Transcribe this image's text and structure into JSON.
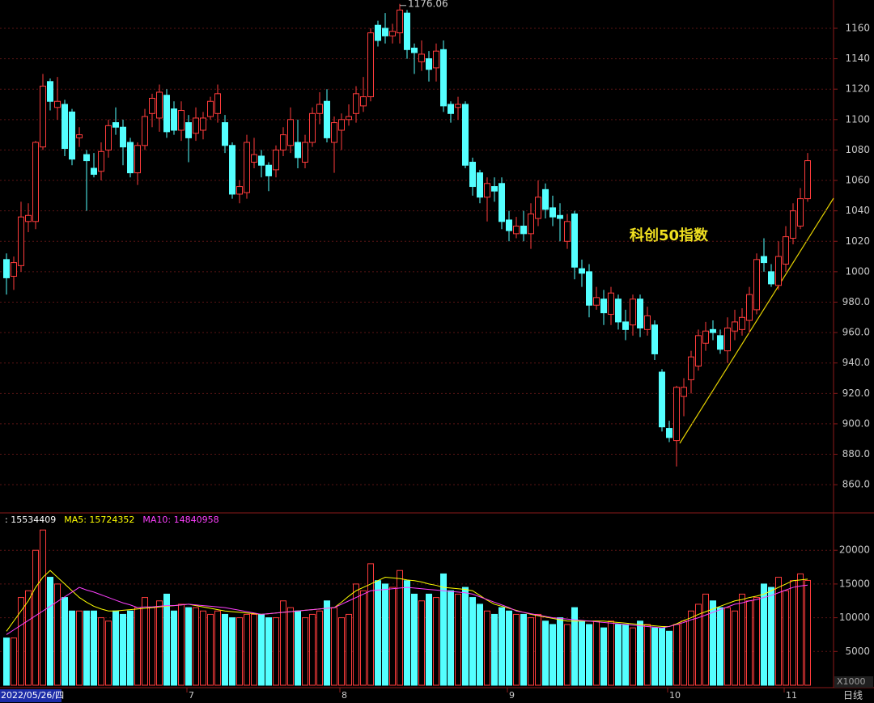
{
  "chart_data": [
    {
      "type": "candlestick",
      "period": "日线",
      "annotation": "科创50指数",
      "up_color": "#ff3c3c",
      "down_color": "#54ffff",
      "categories": [
        "2022/05/26/四",
        null,
        null,
        null,
        null,
        null,
        null,
        null,
        null,
        null,
        null,
        null,
        null,
        null,
        null,
        null,
        null,
        null,
        null,
        null,
        null,
        null,
        null,
        null,
        null,
        "7",
        null,
        null,
        null,
        null,
        null,
        null,
        null,
        null,
        null,
        null,
        null,
        null,
        null,
        null,
        null,
        null,
        null,
        null,
        null,
        null,
        "8",
        null,
        null,
        null,
        null,
        null,
        null,
        null,
        null,
        null,
        null,
        null,
        null,
        null,
        null,
        null,
        null,
        null,
        null,
        null,
        null,
        null,
        null,
        "9",
        null,
        null,
        null,
        null,
        null,
        null,
        null,
        null,
        null,
        null,
        null,
        null,
        null,
        null,
        null,
        null,
        null,
        null,
        null,
        null,
        null,
        "10",
        null,
        null,
        null,
        null,
        null,
        null,
        null,
        null,
        null,
        null,
        null,
        null,
        null,
        null,
        null,
        "11",
        null,
        null,
        null
      ],
      "opens": [
        1008,
        997,
        1004,
        1033,
        1033,
        1082,
        1125,
        1108,
        1110,
        1105,
        1088,
        1077,
        1068,
        1066,
        1080,
        1098,
        1095,
        1085,
        1065,
        1083,
        1104,
        1101,
        1116,
        1107,
        1093,
        1098,
        1091,
        1093,
        1102,
        1104,
        1098,
        1083,
        1051,
        1052,
        1072,
        1076,
        1070,
        1067,
        1080,
        1083,
        1085,
        1072,
        1085,
        1104,
        1112,
        1085,
        1093,
        1100,
        1104,
        1109,
        1115,
        1162,
        1160,
        1155,
        1157,
        1170,
        1147,
        1138,
        1140,
        1134,
        1146,
        1110,
        1108,
        1110,
        1072,
        1065,
        1049,
        1056,
        1058,
        1034,
        1025,
        1030,
        1025,
        1035,
        1054,
        1042,
        1037,
        1020,
        1038,
        1002,
        1000,
        978,
        982,
        972,
        982,
        967,
        965,
        982,
        962,
        965,
        934,
        897,
        889,
        918,
        929,
        938,
        953,
        962,
        958,
        948,
        961,
        962,
        968,
        975,
        1010,
        1000,
        991,
        1005,
        1022,
        1030,
        1048
      ],
      "highs": [
        1012,
        1010,
        1046,
        1045,
        1086,
        1130,
        1127,
        1128,
        1113,
        1107,
        1095,
        1080,
        1078,
        1085,
        1100,
        1108,
        1100,
        1088,
        1085,
        1107,
        1117,
        1123,
        1120,
        1112,
        1112,
        1103,
        1108,
        1105,
        1115,
        1123,
        1103,
        1085,
        1060,
        1090,
        1088,
        1080,
        1072,
        1083,
        1095,
        1108,
        1100,
        1090,
        1108,
        1118,
        1120,
        1102,
        1104,
        1110,
        1122,
        1128,
        1160,
        1165,
        1170,
        1163,
        1176.06,
        1172,
        1150,
        1152,
        1145,
        1150,
        1152,
        1112,
        1115,
        1112,
        1075,
        1067,
        1062,
        1062,
        1062,
        1040,
        1036,
        1040,
        1045,
        1060,
        1058,
        1050,
        1045,
        1038,
        1040,
        1008,
        1005,
        990,
        988,
        990,
        985,
        975,
        985,
        985,
        977,
        968,
        936,
        902,
        925,
        930,
        948,
        962,
        967,
        968,
        962,
        970,
        975,
        976,
        990,
        1012,
        1022,
        1005,
        1020,
        1030,
        1045,
        1055,
        1078
      ],
      "lows": [
        985,
        988,
        1000,
        1026,
        1028,
        1080,
        1106,
        1100,
        1076,
        1070,
        1082,
        1040,
        1062,
        1060,
        1075,
        1090,
        1070,
        1062,
        1057,
        1080,
        1095,
        1092,
        1088,
        1090,
        1086,
        1072,
        1086,
        1087,
        1100,
        1098,
        1078,
        1048,
        1045,
        1048,
        1068,
        1062,
        1053,
        1062,
        1076,
        1078,
        1068,
        1068,
        1082,
        1097,
        1085,
        1065,
        1080,
        1096,
        1098,
        1105,
        1112,
        1148,
        1150,
        1150,
        1150,
        1140,
        1130,
        1132,
        1125,
        1125,
        1105,
        1098,
        1100,
        1068,
        1050,
        1045,
        1033,
        1046,
        1028,
        1020,
        1022,
        1020,
        1015,
        1030,
        1035,
        1030,
        1020,
        1015,
        995,
        990,
        970,
        975,
        965,
        965,
        962,
        955,
        958,
        957,
        958,
        942,
        895,
        888,
        872,
        905,
        920,
        935,
        948,
        955,
        946,
        940,
        955,
        958,
        960,
        972,
        1000,
        990,
        988,
        1000,
        1018,
        1028,
        1046
      ],
      "closes": [
        996,
        1006,
        1036,
        1037,
        1085,
        1122,
        1112,
        1112,
        1081,
        1074,
        1090,
        1073,
        1064,
        1079,
        1096,
        1095,
        1082,
        1065,
        1083,
        1102,
        1114,
        1118,
        1092,
        1093,
        1106,
        1088,
        1101,
        1101,
        1112,
        1117,
        1083,
        1051,
        1056,
        1085,
        1077,
        1070,
        1063,
        1080,
        1090,
        1100,
        1075,
        1085,
        1104,
        1110,
        1088,
        1098,
        1100,
        1102,
        1117,
        1115,
        1157,
        1152,
        1155,
        1158,
        1172,
        1146,
        1144,
        1143,
        1133,
        1145,
        1109,
        1104,
        1110,
        1070,
        1056,
        1049,
        1058,
        1053,
        1033,
        1027,
        1030,
        1025,
        1038,
        1049,
        1041,
        1036,
        1035,
        1033,
        1003,
        999,
        978,
        983,
        973,
        986,
        967,
        962,
        982,
        963,
        971,
        946,
        898,
        891,
        924,
        924,
        944,
        958,
        961,
        960,
        949,
        963,
        967,
        970,
        985,
        1008,
        1006,
        992,
        1010,
        1023,
        1040,
        1048,
        1073
      ],
      "ylim": [
        842,
        1178.6
      ],
      "yticks": [
        {
          "value": 860,
          "label": "860.0"
        },
        {
          "value": 880,
          "label": "880.0"
        },
        {
          "value": 900,
          "label": "900.0"
        },
        {
          "value": 920,
          "label": "920.0"
        },
        {
          "value": 940,
          "label": "940.0"
        },
        {
          "value": 960,
          "label": "960.0"
        },
        {
          "value": 980,
          "label": "980.0"
        },
        1000,
        1020,
        1040,
        1060,
        1080,
        1100,
        1120,
        1140,
        1160
      ],
      "grid": true
    },
    {
      "type": "bar",
      "unit_label": "X1000",
      "ylim": [
        0,
        25000
      ],
      "yticks": [
        5000,
        10000,
        15000,
        20000
      ],
      "grid": true,
      "series": [
        {
          "name": ": 15534409",
          "color": "#ffffff",
          "values": [
            7000,
            7000,
            13000,
            14000,
            20000,
            23000,
            16000,
            15000,
            13000,
            11000,
            11000,
            11000,
            11000,
            10000,
            9500,
            11000,
            10500,
            11000,
            11500,
            13000,
            11500,
            12500,
            13500,
            11000,
            12000,
            11500,
            11500,
            11000,
            10500,
            11000,
            10500,
            10000,
            10000,
            10500,
            10500,
            10500,
            10000,
            10000,
            12500,
            11500,
            11000,
            10000,
            10500,
            11000,
            12500,
            11500,
            10000,
            10500,
            15000,
            14000,
            18000,
            15500,
            15000,
            14500,
            17000,
            15500,
            13500,
            12500,
            13500,
            13000,
            16500,
            14000,
            13500,
            14500,
            13000,
            12000,
            11000,
            10500,
            11500,
            11000,
            10500,
            10500,
            10000,
            10500,
            9500,
            9000,
            10000,
            9000,
            11500,
            9500,
            9000,
            9500,
            8500,
            9500,
            9000,
            9000,
            8500,
            9500,
            9000,
            8500,
            8500,
            8000,
            9000,
            9500,
            11000,
            12000,
            13500,
            12500,
            11500,
            11500,
            11000,
            13500,
            12500,
            13000,
            15000,
            14500,
            16000,
            14000,
            15500,
            16500,
            15534.409
          ]
        },
        {
          "name": "MA5: 15724352",
          "color": "#ffff00",
          "values": [
            8000,
            9500,
            11000,
            12500,
            14500,
            16000,
            17000,
            16000,
            15000,
            14000,
            13000,
            12300,
            11700,
            11300,
            11000,
            11000,
            11100,
            11200,
            11300,
            11400,
            11500,
            11600,
            11700,
            11800,
            11900,
            12000,
            11800,
            11600,
            11400,
            11200,
            11000,
            10900,
            10800,
            10700,
            10600,
            10500,
            10600,
            10700,
            10800,
            10900,
            11000,
            11100,
            11200,
            11300,
            11400,
            11500,
            12300,
            13200,
            14000,
            14500,
            15000,
            15500,
            16000,
            15900,
            15800,
            15600,
            15500,
            15300,
            15000,
            14800,
            14500,
            14400,
            14300,
            14200,
            14000,
            13300,
            12600,
            12000,
            11700,
            11400,
            11100,
            10800,
            10500,
            10300,
            10100,
            9900,
            9700,
            9500,
            9500,
            9500,
            9500,
            9500,
            9500,
            9400,
            9300,
            9200,
            9100,
            9000,
            8900,
            8800,
            8700,
            8700,
            9100,
            9600,
            10000,
            10500,
            10900,
            11300,
            11700,
            12100,
            12500,
            12700,
            13000,
            13200,
            13500,
            14000,
            14500,
            15000,
            15500,
            15600,
            15724.352
          ]
        },
        {
          "name": "MA10: 14840958",
          "color": "#ff40ff",
          "values": [
            7500,
            8200,
            8900,
            9600,
            10300,
            11000,
            11700,
            12400,
            13100,
            13800,
            14500,
            14100,
            13800,
            13400,
            13000,
            12600,
            12200,
            11900,
            11500,
            11600,
            11600,
            11700,
            11800,
            11800,
            11900,
            12000,
            11900,
            11800,
            11700,
            11600,
            11500,
            11300,
            11100,
            10900,
            10700,
            10500,
            10600,
            10700,
            10800,
            10900,
            11000,
            11100,
            11200,
            11300,
            11400,
            11500,
            12000,
            12500,
            13000,
            13500,
            14000,
            14100,
            14200,
            14300,
            14400,
            14500,
            14400,
            14300,
            14200,
            14100,
            14000,
            13900,
            13800,
            13700,
            13500,
            13100,
            12700,
            12300,
            11900,
            11500,
            11000,
            10800,
            10600,
            10400,
            10200,
            10000,
            9900,
            9800,
            9700,
            9600,
            9500,
            9400,
            9300,
            9200,
            9100,
            9000,
            8900,
            8800,
            8700,
            8600,
            8500,
            8700,
            9000,
            9300,
            9700,
            10000,
            10400,
            10800,
            11200,
            11600,
            12000,
            12200,
            12500,
            12700,
            13000,
            13300,
            13700,
            14100,
            14500,
            14700,
            14840.958
          ]
        }
      ]
    }
  ]
}
